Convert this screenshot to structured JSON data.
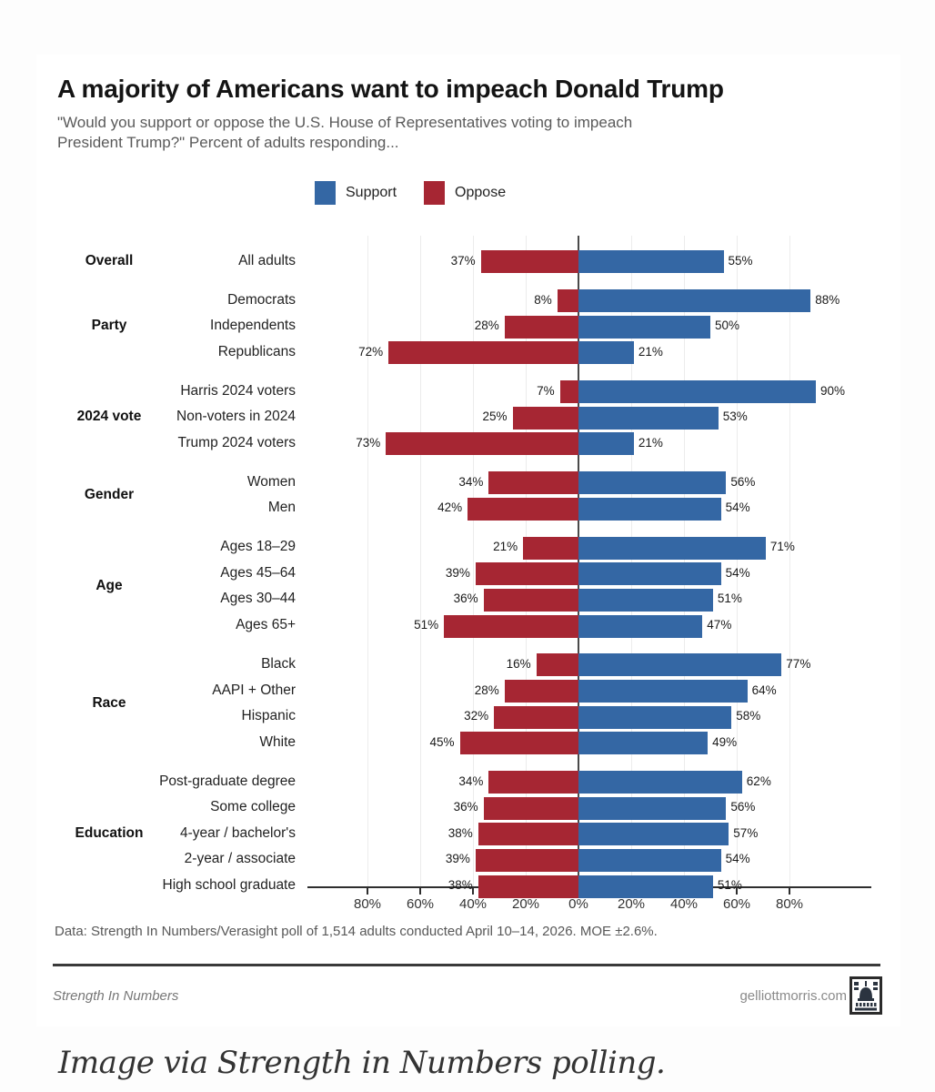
{
  "header": {
    "title": "A majority of Americans want to impeach Donald Trump",
    "subtitle_lines": [
      "\"Would you support or oppose the U.S. House of Representatives voting to impeach",
      "President Trump?\" Percent of adults responding..."
    ]
  },
  "legend": {
    "support_label": "Support",
    "oppose_label": "Oppose"
  },
  "colors": {
    "support": "#3467A4",
    "oppose": "#A62633",
    "zero_line": "#4a4a4a",
    "axis": "#2e2e2e",
    "gridline": "#ececec"
  },
  "chart_data": {
    "type": "bar",
    "orientation": "horizontal-diverging",
    "title": "A majority of Americans want to impeach Donald Trump",
    "unit": "%",
    "series_names": [
      "Support",
      "Oppose"
    ],
    "axis_ticks": [
      "80%",
      "60%",
      "40%",
      "20%",
      "0%",
      "20%",
      "40%",
      "60%",
      "80%"
    ],
    "axis_tick_values": [
      -80,
      -60,
      -40,
      -20,
      0,
      20,
      40,
      60,
      80
    ],
    "groups": [
      {
        "label": "Overall",
        "rows": [
          {
            "category": "All adults",
            "oppose": 37,
            "support": 55
          }
        ]
      },
      {
        "label": "Party",
        "rows": [
          {
            "category": "Democrats",
            "oppose": 8,
            "support": 88
          },
          {
            "category": "Independents",
            "oppose": 28,
            "support": 50
          },
          {
            "category": "Republicans",
            "oppose": 72,
            "support": 21
          }
        ]
      },
      {
        "label": "2024 vote",
        "rows": [
          {
            "category": "Harris 2024 voters",
            "oppose": 7,
            "support": 90
          },
          {
            "category": "Non-voters in 2024",
            "oppose": 25,
            "support": 53
          },
          {
            "category": "Trump 2024 voters",
            "oppose": 73,
            "support": 21
          }
        ]
      },
      {
        "label": "Gender",
        "rows": [
          {
            "category": "Women",
            "oppose": 34,
            "support": 56
          },
          {
            "category": "Men",
            "oppose": 42,
            "support": 54
          }
        ]
      },
      {
        "label": "Age",
        "rows": [
          {
            "category": "Ages 18–29",
            "oppose": 21,
            "support": 71
          },
          {
            "category": "Ages 45–64",
            "oppose": 39,
            "support": 54
          },
          {
            "category": "Ages 30–44",
            "oppose": 36,
            "support": 51
          },
          {
            "category": "Ages 65+",
            "oppose": 51,
            "support": 47
          }
        ]
      },
      {
        "label": "Race",
        "rows": [
          {
            "category": "Black",
            "oppose": 16,
            "support": 77
          },
          {
            "category": "AAPI + Other",
            "oppose": 28,
            "support": 64
          },
          {
            "category": "Hispanic",
            "oppose": 32,
            "support": 58
          },
          {
            "category": "White",
            "oppose": 45,
            "support": 49
          }
        ]
      },
      {
        "label": "Education",
        "rows": [
          {
            "category": "Post-graduate degree",
            "oppose": 34,
            "support": 62
          },
          {
            "category": "Some college",
            "oppose": 36,
            "support": 56
          },
          {
            "category": "4-year / bachelor's",
            "oppose": 38,
            "support": 57
          },
          {
            "category": "2-year / associate",
            "oppose": 39,
            "support": 54
          },
          {
            "category": "High school graduate",
            "oppose": 38,
            "support": 51
          }
        ]
      }
    ]
  },
  "footnote": "Data: Strength In Numbers/Verasight poll of 1,514 adults conducted April 10–14, 2026. MOE ±2.6%.",
  "footer": {
    "source_left": "Strength In Numbers",
    "source_right": "gelliottmorris.com",
    "logo": "capitol-icon"
  },
  "caption": "Image via Strength in Numbers polling."
}
